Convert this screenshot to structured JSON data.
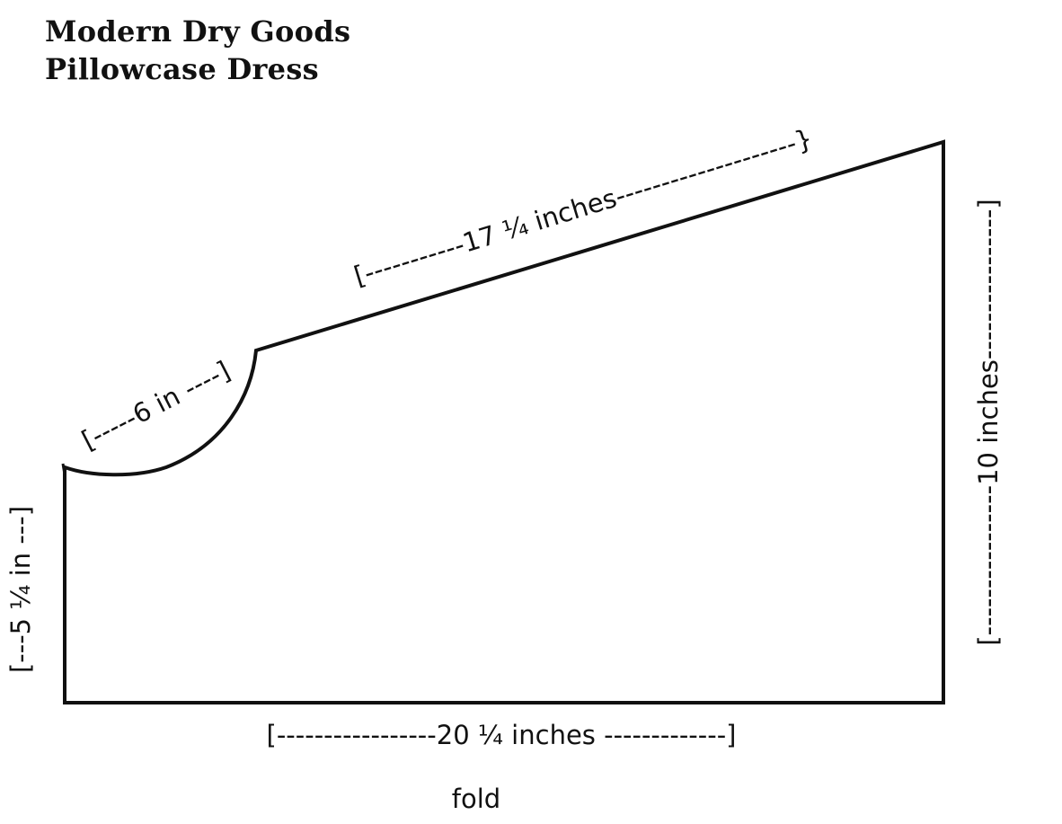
{
  "header": {
    "title_line1": "Modern Dry Goods",
    "title_line2": "Pillowcase Dress"
  },
  "pattern": {
    "outline_color": "#111111",
    "measurements": {
      "shoulder": "[-----------17 ¼ inches--------------------}",
      "armhole": "[-----6 in ----]",
      "left_side": "[---5 ¼ in ---]",
      "right_side": "[----------------10 inches----------------]",
      "bottom": "[-----------------20 ¼ inches -------------]"
    },
    "fold_label": "fold"
  }
}
